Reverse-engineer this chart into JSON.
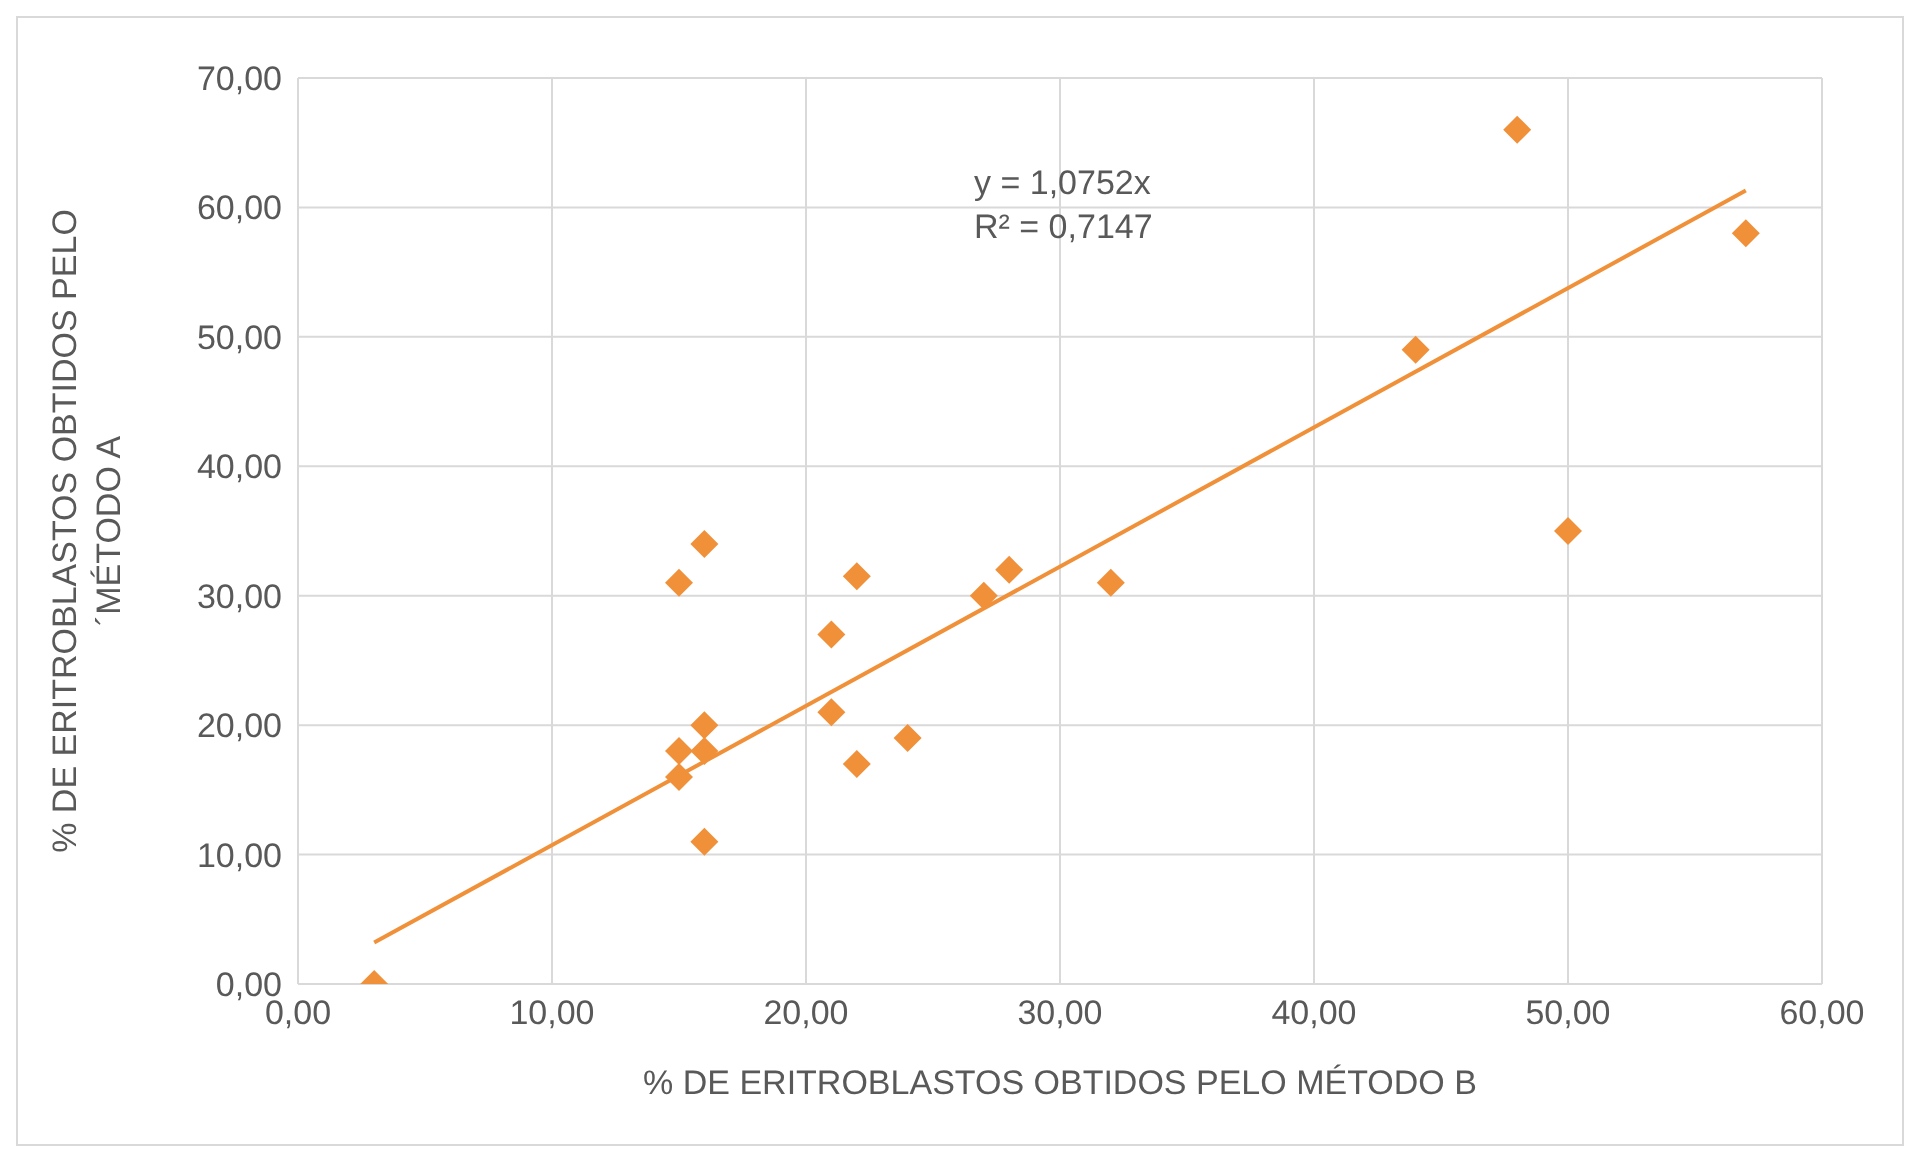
{
  "chart_data": {
    "type": "scatter",
    "xlabel": "% DE ERITROBLASTOS OBTIDOS PELO MÉTODO B",
    "ylabel": "% DE ERITROBLASTOS OBTIDOS PELO ´MÉTODO A",
    "annotations": [
      "y = 1,0752x",
      "R² = 0,7147"
    ],
    "xlim": [
      0,
      60
    ],
    "ylim": [
      0,
      70
    ],
    "xticks": [
      {
        "value": 0,
        "label": "0,00"
      },
      {
        "value": 10,
        "label": "10,00"
      },
      {
        "value": 20,
        "label": "20,00"
      },
      {
        "value": 30,
        "label": "30,00"
      },
      {
        "value": 40,
        "label": "40,00"
      },
      {
        "value": 50,
        "label": "50,00"
      },
      {
        "value": 60,
        "label": "60,00"
      }
    ],
    "yticks": [
      {
        "value": 0,
        "label": "0,00"
      },
      {
        "value": 10,
        "label": "10,00"
      },
      {
        "value": 20,
        "label": "20,00"
      },
      {
        "value": 30,
        "label": "30,00"
      },
      {
        "value": 40,
        "label": "40,00"
      },
      {
        "value": 50,
        "label": "50,00"
      },
      {
        "value": 60,
        "label": "60,00"
      },
      {
        "value": 70,
        "label": "70,00"
      }
    ],
    "grid": true,
    "legend": false,
    "marker": "diamond",
    "series": [
      {
        "color": "#f0913a",
        "x": [
          3,
          15,
          15,
          15,
          16,
          16,
          16,
          16,
          21,
          21,
          22,
          22,
          24,
          27,
          28,
          32,
          44,
          48,
          50,
          57
        ],
        "values": [
          0,
          16,
          18,
          31,
          34,
          20,
          18,
          11,
          27,
          21,
          31.5,
          17,
          19,
          30,
          32,
          31,
          49,
          66,
          35,
          58
        ]
      },
      {
        "type": "line",
        "color": "#f0913a",
        "marker": "none",
        "x": [
          3,
          57
        ],
        "values": [
          3.2,
          61.3
        ]
      }
    ]
  }
}
